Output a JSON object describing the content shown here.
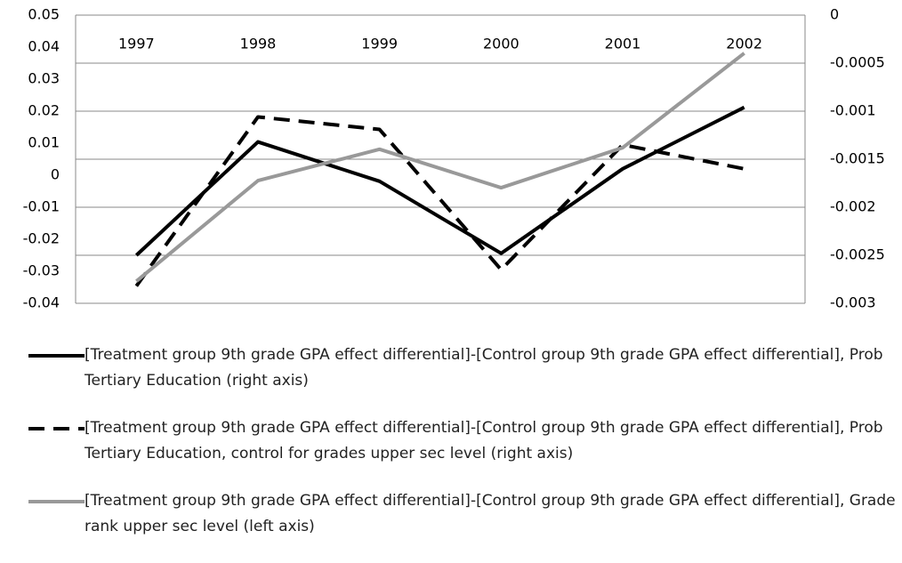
{
  "chart_data": {
    "type": "line",
    "categories": [
      "1997",
      "1998",
      "1999",
      "2000",
      "2001",
      "2002"
    ],
    "ylim": [
      -0.04,
      0.05
    ],
    "yticks": [
      0.05,
      0.04,
      0.03,
      0.02,
      0.01,
      0,
      -0.01,
      -0.02,
      -0.03,
      -0.04
    ],
    "y2lim": [
      -0.003,
      0
    ],
    "y2ticks": [
      0,
      -0.0005,
      -0.001,
      -0.0015,
      -0.002,
      -0.0025,
      -0.003
    ],
    "grid": true,
    "legend": "bottom",
    "series": [
      {
        "name": "[Treatment group 9th grade GPA effect differential]-[Control group 9th grade GPA effect differential], Prob Tertiary Education (right axis)",
        "color": "#000000",
        "style": "solid",
        "axis": "y2",
        "values": [
          -0.0025,
          -0.00132,
          -0.00173,
          -0.00248,
          -0.0016,
          -0.00096
        ]
      },
      {
        "name": "[Treatment group 9th grade GPA effect differential]-[Control group 9th grade GPA effect differential], Prob Tertiary Education, control for grades upper sec level (right axis)",
        "color": "#000000",
        "style": "dashed",
        "axis": "y2",
        "values": [
          -0.00282,
          -0.00106,
          -0.00119,
          -0.00265,
          -0.00135,
          -0.0016
        ]
      },
      {
        "name": "[Treatment group 9th grade GPA effect differential]-[Control group 9th grade GPA effect differential], Grade rank upper sec level (left axis)",
        "color": "#999999",
        "style": "solid",
        "axis": "y",
        "values": [
          -0.0331,
          -0.0017,
          0.0081,
          -0.0039,
          0.0086,
          0.0381
        ]
      }
    ]
  }
}
